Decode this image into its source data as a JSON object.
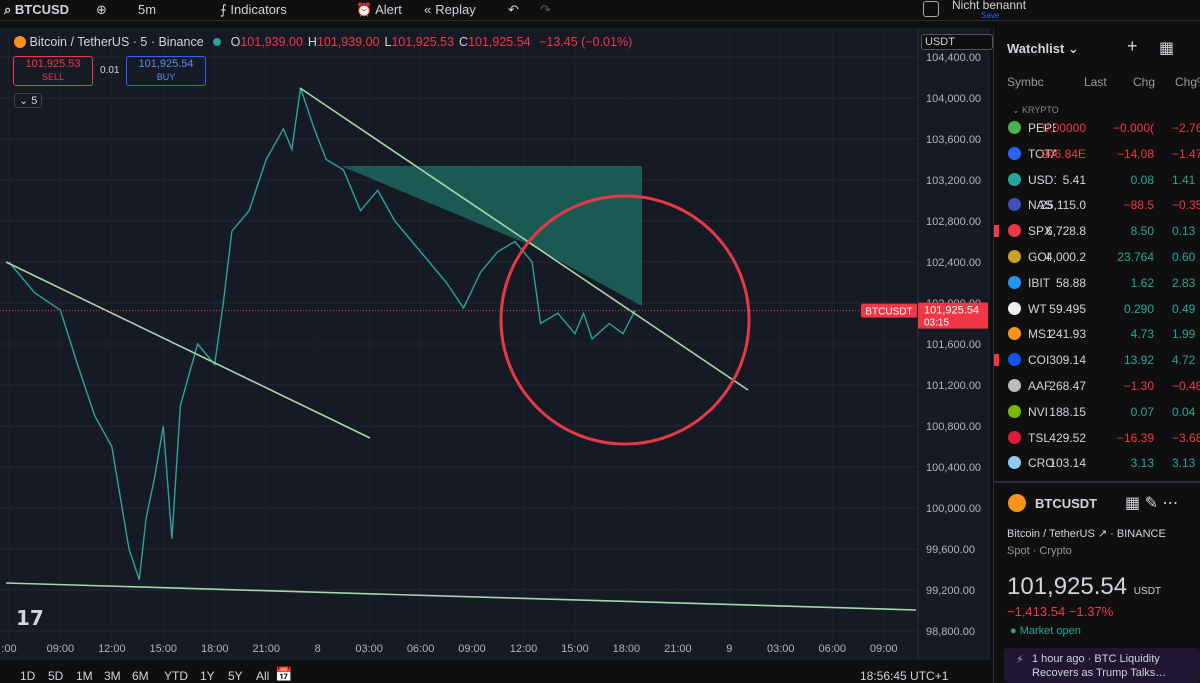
{
  "toolbar": {
    "symbol": "BTCUSD",
    "interval": "5m",
    "indicators": "Indicators",
    "alert": "Alert",
    "replay": "Replay",
    "layout_name": "Nicht benannt",
    "save": "Save"
  },
  "legend": {
    "title": "Bitcoin / TetherUS · 5 · Binance",
    "ohlc": [
      {
        "label": "O",
        "value": "101,939.00"
      },
      {
        "label": "H",
        "value": "101,939.00"
      },
      {
        "label": "L",
        "value": "101,925.53"
      },
      {
        "label": "C",
        "value": "101,925.54"
      }
    ],
    "change": "−13.45 (−0.01%)",
    "indicator_count": "5"
  },
  "trade": {
    "sell_price": "101,925.53",
    "sell": "SELL",
    "spread": "0.01",
    "buy_price": "101,925.54",
    "buy": "BUY"
  },
  "currency": "USDT",
  "chart": {
    "ylim": [
      98712,
      104683
    ],
    "yticks": [
      {
        "value": 104400,
        "label": "104,400.00"
      },
      {
        "value": 104000,
        "label": "104,000.00"
      },
      {
        "value": 103600,
        "label": "103,600.00"
      },
      {
        "value": 103200,
        "label": "103,200.00"
      },
      {
        "value": 102800,
        "label": "102,800.00"
      },
      {
        "value": 102400,
        "label": "102,400.00"
      },
      {
        "value": 102000,
        "label": "102,000.00"
      },
      {
        "value": 101600,
        "label": "101,600.00"
      },
      {
        "value": 101200,
        "label": "101,200.00"
      },
      {
        "value": 100800,
        "label": "100,800.00"
      },
      {
        "value": 100400,
        "label": "100,400.00"
      },
      {
        "value": 100000,
        "label": "100,000.00"
      },
      {
        "value": 99600,
        "label": "99,600.00"
      },
      {
        "value": 99200,
        "label": "99,200.00"
      },
      {
        "value": 98800,
        "label": "98,800.00"
      }
    ],
    "xlim": [
      -0.52,
      53.0
    ],
    "xticks": [
      {
        "value": 0,
        "label": ":00"
      },
      {
        "value": 3,
        "label": "09:00"
      },
      {
        "value": 6,
        "label": "12:00"
      },
      {
        "value": 9,
        "label": "15:00"
      },
      {
        "value": 12,
        "label": "18:00"
      },
      {
        "value": 15,
        "label": "21:00"
      },
      {
        "value": 18,
        "label": "8"
      },
      {
        "value": 21,
        "label": "03:00"
      },
      {
        "value": 24,
        "label": "06:00"
      },
      {
        "value": 27,
        "label": "09:00"
      },
      {
        "value": 30,
        "label": "12:00"
      },
      {
        "value": 33,
        "label": "15:00"
      },
      {
        "value": 36,
        "label": "18:00"
      },
      {
        "value": 39,
        "label": "21:00"
      },
      {
        "value": 42,
        "label": "9"
      },
      {
        "value": 45,
        "label": "03:00"
      },
      {
        "value": 48,
        "label": "06:00"
      },
      {
        "value": 51,
        "label": "09:00"
      }
    ],
    "price_series": {
      "color": "#26a69a",
      "x": [
        0,
        1.5,
        3,
        4,
        5,
        6,
        6.5,
        7,
        7.6,
        8,
        8.5,
        9,
        9.5,
        10,
        11,
        12,
        12.5,
        13,
        14,
        15,
        16,
        16.5,
        17,
        17.8,
        18.5,
        19.5,
        20.5,
        21.5,
        22.5,
        23.5,
        24.5,
        25.5,
        26.5,
        27.5,
        28.5,
        29.5,
        30.5,
        31,
        32,
        33,
        33.5,
        34,
        35,
        35.8,
        36.5
      ],
      "values": [
        102400,
        102100,
        101930,
        101400,
        100900,
        100600,
        100100,
        99600,
        99300,
        99900,
        100300,
        100800,
        99700,
        101000,
        101600,
        101400,
        102000,
        102700,
        102900,
        103400,
        103700,
        103500,
        104100,
        103700,
        103400,
        103300,
        102900,
        103100,
        102800,
        102600,
        102400,
        102200,
        101950,
        102300,
        102500,
        102600,
        102400,
        101800,
        101900,
        101700,
        101900,
        101650,
        101800,
        101700,
        101925.54
      ]
    },
    "last_price": {
      "value": 101925.54,
      "label": "101,925.54",
      "symbol": "BTCUSDT",
      "countdown": "03:15",
      "color": "#f23645"
    }
  },
  "bottom_bar": {
    "ranges": [
      "1D",
      "5D",
      "1M",
      "3M",
      "6M",
      "YTD",
      "1Y",
      "5Y",
      "All"
    ],
    "clock": "18:56:45 UTC+1"
  },
  "watchlist": {
    "title": "Watchlist",
    "columns": [
      "Symbc",
      "Last",
      "Chg",
      "Chg%"
    ],
    "section": "KRYPTO",
    "rows": [
      {
        "symbol": "PEPE",
        "last": "0.00000",
        "chg": "−0.000(",
        "chg_pct": "−2.76",
        "icon_color": "#4caf50"
      },
      {
        "symbol": "TOTA",
        "last": "946.84E",
        "chg": "−14.08",
        "chg_pct": "−1.47",
        "icon_color": "#2962ff"
      },
      {
        "symbol": "USD1",
        "last": "5.41",
        "chg": "0.08",
        "chg_pct": "1.41",
        "icon_color": "#26a69a"
      },
      {
        "symbol": "NAS",
        "last": "25,115.0",
        "chg": "−88.5",
        "chg_pct": "−0.35",
        "icon_color": "#3f51b5"
      },
      {
        "symbol": "SPX",
        "last": "6,728.8",
        "chg": "8.50",
        "chg_pct": "0.13",
        "icon_color": "#f23645",
        "flagged": true
      },
      {
        "symbol": "GOI",
        "last": "4,000.2",
        "chg": "23.764",
        "chg_pct": "0.60",
        "icon_color": "#c9a227"
      },
      {
        "symbol": "IBIT",
        "last": "58.88",
        "chg": "1.62",
        "chg_pct": "2.83",
        "icon_color": "#2196f3"
      },
      {
        "symbol": "WT",
        "last": "59.495",
        "chg": "0.290",
        "chg_pct": "0.49",
        "icon_color": "#eeeeee"
      },
      {
        "symbol": "MS1",
        "last": "241.93",
        "chg": "4.73",
        "chg_pct": "1.99",
        "icon_color": "#f7931a"
      },
      {
        "symbol": "COI",
        "last": "309.14",
        "chg": "13.92",
        "chg_pct": "4.72",
        "icon_color": "#1652f0",
        "flagged": true
      },
      {
        "symbol": "AAF",
        "last": "268.47",
        "chg": "−1.30",
        "chg_pct": "−0.48",
        "icon_color": "#bbbbbb"
      },
      {
        "symbol": "NVI",
        "last": "188.15",
        "chg": "0.07",
        "chg_pct": "0.04",
        "icon_color": "#76b900"
      },
      {
        "symbol": "TSL",
        "last": "429.52",
        "chg": "−16.39",
        "chg_pct": "−3.68",
        "icon_color": "#e31937"
      },
      {
        "symbol": "CRO",
        "last": "103.14",
        "chg": "3.13",
        "chg_pct": "3.13",
        "icon_color": "#90caf9"
      }
    ]
  },
  "details": {
    "symbol": "BTCUSDT",
    "name": "Bitcoin / TetherUS",
    "exchange": "BINANCE",
    "type": "Spot · Crypto",
    "price": "101,925.54",
    "currency": "USDT",
    "change": "−1,413.54",
    "change_pct": "−1.37%",
    "status": "Market open",
    "news_time": "1 hour ago",
    "news_text": "BTC Liquidity Recovers as Trump Talks…"
  }
}
